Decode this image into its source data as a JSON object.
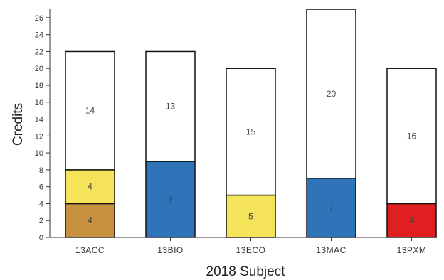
{
  "chart_data": {
    "type": "bar",
    "stacked": true,
    "xlabel": "2018 Subject",
    "ylabel": "Credits",
    "ylim": [
      0,
      27
    ],
    "yticks": [
      0,
      2,
      4,
      6,
      8,
      10,
      12,
      14,
      16,
      18,
      20,
      22,
      24,
      26
    ],
    "grid": false,
    "categories": [
      "13ACC",
      "13BIO",
      "13ECO",
      "13MAC",
      "13PXM"
    ],
    "stacks": [
      {
        "category": "13ACC",
        "segments": [
          {
            "value": 4,
            "label": "4",
            "color": "#c8913f"
          },
          {
            "value": 4,
            "label": "4",
            "color": "#f5e35a"
          },
          {
            "value": 14,
            "label": "14",
            "color": "#ffffff"
          }
        ]
      },
      {
        "category": "13BIO",
        "segments": [
          {
            "value": 9,
            "label": "9",
            "color": "#2f74b9"
          },
          {
            "value": 13,
            "label": "13",
            "color": "#ffffff"
          }
        ]
      },
      {
        "category": "13ECO",
        "segments": [
          {
            "value": 5,
            "label": "5",
            "color": "#f5e35a"
          },
          {
            "value": 15,
            "label": "15",
            "color": "#ffffff"
          }
        ]
      },
      {
        "category": "13MAC",
        "segments": [
          {
            "value": 7,
            "label": "7",
            "color": "#2f74b9"
          },
          {
            "value": 20,
            "label": "20",
            "color": "#ffffff"
          }
        ]
      },
      {
        "category": "13PXM",
        "segments": [
          {
            "value": 4,
            "label": "4",
            "color": "#e02020"
          },
          {
            "value": 16,
            "label": "16",
            "color": "#ffffff"
          }
        ]
      }
    ]
  }
}
